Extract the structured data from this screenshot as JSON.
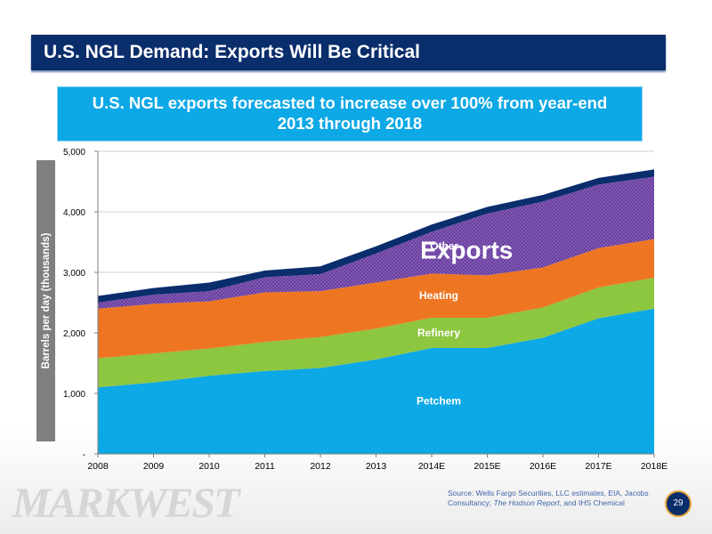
{
  "title": "U.S. NGL Demand: Exports Will Be Critical",
  "subtitle": "U.S. NGL exports forecasted to increase over 100% from year-end\n2013 through 2018",
  "logo_text": "MARKWEST",
  "source": {
    "prefix": "Source: Wells Fargo Securities, LLC estimates, EIA, Jacobs Consultancy; ",
    "italic": "The Hodson Report",
    "suffix": ", and IHS Chemical"
  },
  "page_number": "29",
  "chart_data": {
    "type": "area",
    "stacked": true,
    "ylabel": "Barrels per day (thousands)",
    "ylim": [
      0,
      5000
    ],
    "yticks": [
      0,
      1000,
      2000,
      3000,
      4000,
      5000
    ],
    "ytick_labels": [
      "-",
      "1,000",
      "2,000",
      "3,000",
      "4,000",
      "5,000"
    ],
    "grid": true,
    "categories": [
      "2008",
      "2009",
      "2010",
      "2011",
      "2012",
      "2013",
      "2014E",
      "2015E",
      "2016E",
      "2017E",
      "2018E"
    ],
    "series": [
      {
        "name": "Petchem",
        "color": "#0da8e6",
        "values": [
          1100,
          1180,
          1290,
          1370,
          1420,
          1560,
          1750,
          1750,
          1920,
          2240,
          2400
        ]
      },
      {
        "name": "Refinery",
        "color": "#8dc63f",
        "values": [
          480,
          480,
          450,
          480,
          510,
          510,
          500,
          500,
          500,
          510,
          510
        ]
      },
      {
        "name": "Heating",
        "color": "#ee7623",
        "values": [
          820,
          820,
          780,
          820,
          760,
          760,
          730,
          700,
          660,
          650,
          640
        ]
      },
      {
        "name": "Exports",
        "color": "#6a3fa0",
        "pattern": "dotted",
        "values": [
          100,
          150,
          170,
          250,
          280,
          480,
          690,
          1020,
          1090,
          1050,
          1030
        ]
      },
      {
        "name": "Other",
        "color": "#0a2d6b",
        "values": [
          110,
          110,
          140,
          110,
          130,
          120,
          120,
          110,
          110,
          110,
          120
        ]
      }
    ],
    "annotations": [
      {
        "text": "Petchem",
        "series": "Petchem"
      },
      {
        "text": "Refinery",
        "series": "Refinery"
      },
      {
        "text": "Heating",
        "series": "Heating"
      },
      {
        "text": "Exports",
        "series": "Exports"
      },
      {
        "text": "Other",
        "series": "Other"
      }
    ]
  }
}
